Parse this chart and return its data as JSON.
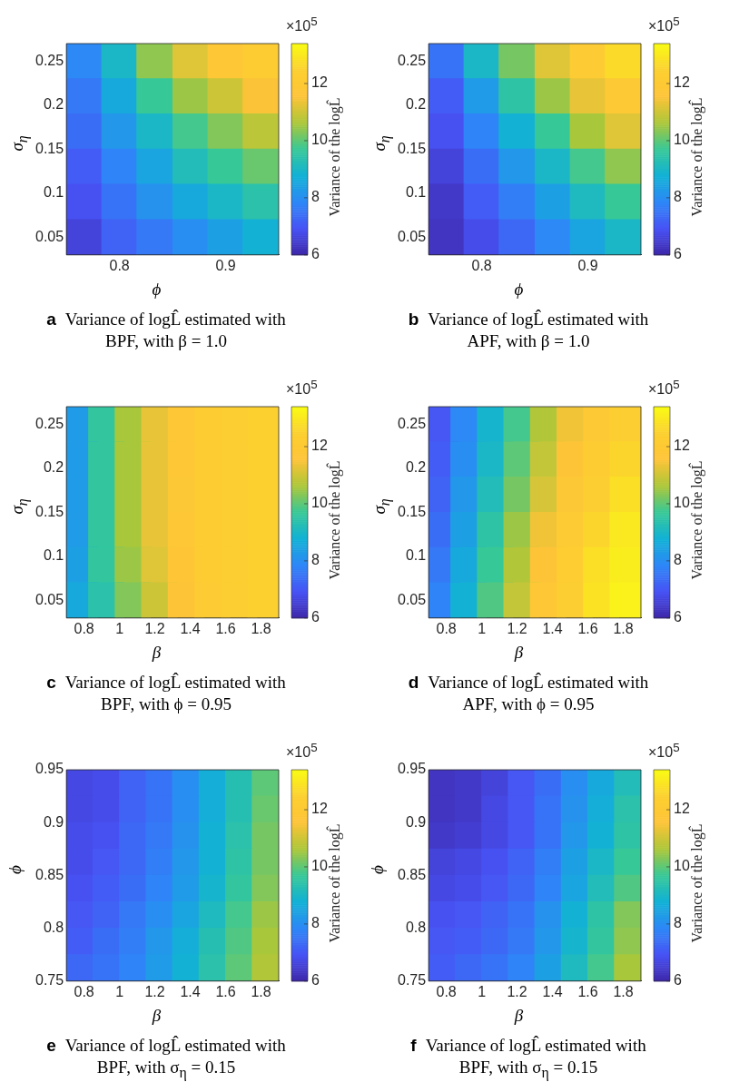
{
  "chart_data": [
    {
      "type": "scatter",
      "title": "Variance of logL̂ estimated with BPF, with β = 1.0",
      "subtitle": "a",
      "xlabel": "ϕ",
      "ylabel": "σ$_{η}$",
      "clabel": "Variance of the logL̂",
      "annotations": [
        "×10$^{5}$"
      ],
      "marker": "square",
      "xlim": [
        0.75,
        0.95
      ],
      "xticks": [
        0.8,
        0.9
      ],
      "ylim": [
        0.03,
        0.27
      ],
      "yticks": [
        0.05,
        0.1,
        0.15,
        0.2,
        0.25
      ],
      "clim": [
        6,
        13.4
      ],
      "cticks": [
        6,
        8,
        10,
        12
      ],
      "x": [
        0.767,
        0.8,
        0.833,
        0.867,
        0.9,
        0.933,
        0.767,
        0.8,
        0.833,
        0.867,
        0.9,
        0.933,
        0.767,
        0.8,
        0.833,
        0.867,
        0.9,
        0.933,
        0.767,
        0.8,
        0.833,
        0.867,
        0.9,
        0.933,
        0.767,
        0.8,
        0.833,
        0.867,
        0.9,
        0.933,
        0.767,
        0.8,
        0.833,
        0.867,
        0.9,
        0.933
      ],
      "values": [
        0.25,
        0.25,
        0.25,
        0.25,
        0.25,
        0.25,
        0.21,
        0.21,
        0.21,
        0.21,
        0.21,
        0.21,
        0.17,
        0.17,
        0.17,
        0.17,
        0.17,
        0.17,
        0.13,
        0.13,
        0.13,
        0.13,
        0.13,
        0.13,
        0.09,
        0.09,
        0.09,
        0.09,
        0.09,
        0.09,
        0.05,
        0.05,
        0.05,
        0.05,
        0.05,
        0.05
      ],
      "cvalues": [
        7.9,
        9.0,
        10.4,
        11.2,
        11.8,
        12.2,
        7.6,
        8.6,
        9.7,
        10.5,
        11.0,
        11.5,
        7.4,
        8.2,
        9.0,
        9.8,
        10.3,
        10.8,
        7.1,
        7.8,
        8.5,
        9.2,
        9.7,
        10.1,
        6.9,
        7.5,
        8.1,
        8.6,
        9.0,
        9.4,
        6.6,
        7.2,
        7.6,
        8.0,
        8.4,
        8.8
      ]
    },
    {
      "type": "scatter",
      "title": "Variance of logL̂ estimated with APF, with β = 1.0",
      "subtitle": "b",
      "xlabel": "ϕ",
      "ylabel": "σ$_{η}$",
      "clabel": "Variance of the logL̂",
      "annotations": [
        "×10$^{5}$"
      ],
      "marker": "square",
      "xlim": [
        0.75,
        0.95
      ],
      "xticks": [
        0.8,
        0.9
      ],
      "ylim": [
        0.03,
        0.27
      ],
      "yticks": [
        0.05,
        0.1,
        0.15,
        0.2,
        0.25
      ],
      "clim": [
        6,
        13.4
      ],
      "cticks": [
        6,
        8,
        10,
        12
      ],
      "x": [
        0.767,
        0.8,
        0.833,
        0.867,
        0.9,
        0.933,
        0.767,
        0.8,
        0.833,
        0.867,
        0.9,
        0.933,
        0.767,
        0.8,
        0.833,
        0.867,
        0.9,
        0.933,
        0.767,
        0.8,
        0.833,
        0.867,
        0.9,
        0.933,
        0.767,
        0.8,
        0.833,
        0.867,
        0.9,
        0.933,
        0.767,
        0.8,
        0.833,
        0.867,
        0.9,
        0.933
      ],
      "values": [
        0.25,
        0.25,
        0.25,
        0.25,
        0.25,
        0.25,
        0.21,
        0.21,
        0.21,
        0.21,
        0.21,
        0.21,
        0.17,
        0.17,
        0.17,
        0.17,
        0.17,
        0.17,
        0.13,
        0.13,
        0.13,
        0.13,
        0.13,
        0.13,
        0.09,
        0.09,
        0.09,
        0.09,
        0.09,
        0.09,
        0.05,
        0.05,
        0.05,
        0.05,
        0.05,
        0.05
      ],
      "cvalues": [
        7.5,
        9.0,
        10.2,
        11.2,
        12.1,
        12.7,
        7.1,
        8.3,
        9.5,
        10.5,
        11.3,
        12.0,
        6.9,
        7.8,
        8.8,
        9.7,
        10.6,
        11.2,
        6.6,
        7.4,
        8.2,
        9.0,
        9.8,
        10.4,
        6.4,
        7.1,
        7.7,
        8.4,
        9.1,
        9.7,
        6.3,
        6.8,
        7.3,
        7.9,
        8.5,
        9.0
      ]
    },
    {
      "type": "scatter",
      "title": "Variance of logL̂ estimated with BPF, with ϕ = 0.95",
      "subtitle": "c",
      "xlabel": "β",
      "ylabel": "σ$_{η}$",
      "clabel": "Variance of the logL̂",
      "annotations": [
        "×10$^{5}$"
      ],
      "marker": "square",
      "xlim": [
        0.7,
        1.9
      ],
      "xticks": [
        0.8,
        1,
        1.2,
        1.4,
        1.6,
        1.8
      ],
      "ylim": [
        0.03,
        0.27
      ],
      "yticks": [
        0.05,
        0.1,
        0.15,
        0.2,
        0.25
      ],
      "clim": [
        6,
        13.4
      ],
      "cticks": [
        6,
        8,
        10,
        12
      ],
      "x": [
        0.775,
        0.925,
        1.075,
        1.225,
        1.375,
        1.525,
        1.675,
        1.825,
        0.775,
        0.925,
        1.075,
        1.225,
        1.375,
        1.525,
        1.675,
        1.825,
        0.775,
        0.925,
        1.075,
        1.225,
        1.375,
        1.525,
        1.675,
        1.825,
        0.775,
        0.925,
        1.075,
        1.225,
        1.375,
        1.525,
        1.675,
        1.825,
        0.775,
        0.925,
        1.075,
        1.225,
        1.375,
        1.525,
        1.675,
        1.825,
        0.775,
        0.925,
        1.075,
        1.225,
        1.375,
        1.525,
        1.675,
        1.825
      ],
      "values": [
        0.25,
        0.25,
        0.25,
        0.25,
        0.25,
        0.25,
        0.25,
        0.25,
        0.21,
        0.21,
        0.21,
        0.21,
        0.21,
        0.21,
        0.21,
        0.21,
        0.17,
        0.17,
        0.17,
        0.17,
        0.17,
        0.17,
        0.17,
        0.17,
        0.13,
        0.13,
        0.13,
        0.13,
        0.13,
        0.13,
        0.13,
        0.13,
        0.09,
        0.09,
        0.09,
        0.09,
        0.09,
        0.09,
        0.09,
        0.09,
        0.05,
        0.05,
        0.05,
        0.05,
        0.05,
        0.05,
        0.05,
        0.05
      ],
      "cvalues": [
        8.3,
        9.6,
        10.6,
        11.3,
        11.8,
        12.2,
        12.4,
        12.5,
        8.3,
        9.6,
        10.6,
        11.3,
        11.8,
        12.2,
        12.4,
        12.5,
        8.3,
        9.6,
        10.6,
        11.3,
        11.9,
        12.2,
        12.4,
        12.5,
        8.3,
        9.6,
        10.6,
        11.3,
        11.8,
        12.2,
        12.4,
        12.5,
        8.4,
        9.6,
        10.5,
        11.2,
        11.7,
        12.2,
        12.4,
        12.5,
        8.6,
        9.4,
        10.3,
        11.0,
        11.6,
        12.1,
        12.4,
        12.5
      ]
    },
    {
      "type": "scatter",
      "title": "Variance of logL̂ estimated with APF, with ϕ = 0.95",
      "subtitle": "d",
      "xlabel": "β",
      "ylabel": "σ$_{η}$",
      "clabel": "Variance of the logL̂",
      "annotations": [
        "×10$^{5}$"
      ],
      "marker": "square",
      "xlim": [
        0.7,
        1.9
      ],
      "xticks": [
        0.8,
        1,
        1.2,
        1.4,
        1.6,
        1.8
      ],
      "ylim": [
        0.03,
        0.27
      ],
      "yticks": [
        0.05,
        0.1,
        0.15,
        0.2,
        0.25
      ],
      "clim": [
        6,
        13.4
      ],
      "cticks": [
        6,
        8,
        10,
        12
      ],
      "x": [
        0.775,
        0.925,
        1.075,
        1.225,
        1.375,
        1.525,
        1.675,
        1.825,
        0.775,
        0.925,
        1.075,
        1.225,
        1.375,
        1.525,
        1.675,
        1.825,
        0.775,
        0.925,
        1.075,
        1.225,
        1.375,
        1.525,
        1.675,
        1.825,
        0.775,
        0.925,
        1.075,
        1.225,
        1.375,
        1.525,
        1.675,
        1.825,
        0.775,
        0.925,
        1.075,
        1.225,
        1.375,
        1.525,
        1.675,
        1.825,
        0.775,
        0.925,
        1.075,
        1.225,
        1.375,
        1.525,
        1.675,
        1.825
      ],
      "values": [
        0.25,
        0.25,
        0.25,
        0.25,
        0.25,
        0.25,
        0.25,
        0.25,
        0.21,
        0.21,
        0.21,
        0.21,
        0.21,
        0.21,
        0.21,
        0.21,
        0.17,
        0.17,
        0.17,
        0.17,
        0.17,
        0.17,
        0.17,
        0.17,
        0.13,
        0.13,
        0.13,
        0.13,
        0.13,
        0.13,
        0.13,
        0.13,
        0.09,
        0.09,
        0.09,
        0.09,
        0.09,
        0.09,
        0.09,
        0.09,
        0.05,
        0.05,
        0.05,
        0.05,
        0.05,
        0.05,
        0.05,
        0.05
      ],
      "cvalues": [
        7.0,
        7.9,
        8.9,
        9.8,
        10.7,
        11.4,
        12.0,
        12.4,
        7.1,
        8.0,
        9.0,
        10.0,
        10.9,
        11.6,
        12.2,
        12.6,
        7.2,
        8.2,
        9.2,
        10.2,
        11.1,
        11.9,
        12.4,
        12.8,
        7.4,
        8.4,
        9.5,
        10.5,
        11.4,
        12.1,
        12.6,
        13.0,
        7.6,
        8.6,
        9.7,
        10.7,
        11.6,
        12.3,
        12.8,
        13.1,
        7.8,
        8.8,
        9.9,
        10.9,
        11.8,
        12.4,
        12.9,
        13.2
      ]
    },
    {
      "type": "scatter",
      "title": "Variance of logL̂ estimated with BPF, with σ$_{η}$ = 0.15",
      "subtitle": "e",
      "xlabel": "β",
      "ylabel": "ϕ",
      "clabel": "Variance of the logL̂",
      "annotations": [
        "×10$^{5}$"
      ],
      "marker": "square",
      "xlim": [
        0.7,
        1.9
      ],
      "xticks": [
        0.8,
        1,
        1.2,
        1.4,
        1.6,
        1.8
      ],
      "ylim": [
        0.75,
        0.95
      ],
      "yticks": [
        0.75,
        0.8,
        0.85,
        0.9,
        0.95
      ],
      "clim": [
        6,
        13.4
      ],
      "cticks": [
        6,
        8,
        10,
        12
      ],
      "x": [
        0.775,
        0.925,
        1.075,
        1.225,
        1.375,
        1.525,
        1.675,
        1.825,
        0.775,
        0.925,
        1.075,
        1.225,
        1.375,
        1.525,
        1.675,
        1.825,
        0.775,
        0.925,
        1.075,
        1.225,
        1.375,
        1.525,
        1.675,
        1.825,
        0.775,
        0.925,
        1.075,
        1.225,
        1.375,
        1.525,
        1.675,
        1.825,
        0.775,
        0.925,
        1.075,
        1.225,
        1.375,
        1.525,
        1.675,
        1.825,
        0.775,
        0.925,
        1.075,
        1.225,
        1.375,
        1.525,
        1.675,
        1.825,
        0.775,
        0.925,
        1.075,
        1.225,
        1.375,
        1.525,
        1.675,
        1.825,
        0.775,
        0.925,
        1.075,
        1.225,
        1.375,
        1.525,
        1.675,
        1.825
      ],
      "values": [
        0.9375,
        0.9375,
        0.9375,
        0.9375,
        0.9375,
        0.9375,
        0.9375,
        0.9375,
        0.9125,
        0.9125,
        0.9125,
        0.9125,
        0.9125,
        0.9125,
        0.9125,
        0.9125,
        0.8875,
        0.8875,
        0.8875,
        0.8875,
        0.8875,
        0.8875,
        0.8875,
        0.8875,
        0.8625,
        0.8625,
        0.8625,
        0.8625,
        0.8625,
        0.8625,
        0.8625,
        0.8625,
        0.8375,
        0.8375,
        0.8375,
        0.8375,
        0.8375,
        0.8375,
        0.8375,
        0.8375,
        0.8125,
        0.8125,
        0.8125,
        0.8125,
        0.8125,
        0.8125,
        0.8125,
        0.8125,
        0.7875,
        0.7875,
        0.7875,
        0.7875,
        0.7875,
        0.7875,
        0.7875,
        0.7875,
        0.7625,
        0.7625,
        0.7625,
        0.7625,
        0.7625,
        0.7625,
        0.7625,
        0.7625
      ],
      "cvalues": [
        6.7,
        6.8,
        7.2,
        7.5,
        8.0,
        8.7,
        9.3,
        10.0,
        6.7,
        6.8,
        7.2,
        7.5,
        8.0,
        8.7,
        9.3,
        10.1,
        6.8,
        6.9,
        7.3,
        7.6,
        8.1,
        8.8,
        9.4,
        10.2,
        6.8,
        7.0,
        7.3,
        7.7,
        8.2,
        8.8,
        9.5,
        10.2,
        6.9,
        7.1,
        7.4,
        7.8,
        8.3,
        8.9,
        9.6,
        10.3,
        7.0,
        7.2,
        7.6,
        8.0,
        8.5,
        9.1,
        9.8,
        10.5,
        7.1,
        7.4,
        7.7,
        8.2,
        8.7,
        9.3,
        9.9,
        10.6,
        7.3,
        7.5,
        7.8,
        8.3,
        8.8,
        9.4,
        10.0,
        10.7
      ]
    },
    {
      "type": "scatter",
      "title": "Variance of logL̂ estimated with BPF, with σ$_{η}$ = 0.15",
      "subtitle": "f",
      "xlabel": "β",
      "ylabel": "ϕ",
      "clabel": "Variance of the logL̂",
      "annotations": [
        "×10$^{5}$"
      ],
      "marker": "square",
      "xlim": [
        0.7,
        1.9
      ],
      "xticks": [
        0.8,
        1,
        1.2,
        1.4,
        1.6,
        1.8
      ],
      "ylim": [
        0.75,
        0.95
      ],
      "yticks": [
        0.75,
        0.8,
        0.85,
        0.9,
        0.95
      ],
      "clim": [
        6,
        13.4
      ],
      "cticks": [
        6,
        8,
        10,
        12
      ],
      "x": [
        0.775,
        0.925,
        1.075,
        1.225,
        1.375,
        1.525,
        1.675,
        1.825,
        0.775,
        0.925,
        1.075,
        1.225,
        1.375,
        1.525,
        1.675,
        1.825,
        0.775,
        0.925,
        1.075,
        1.225,
        1.375,
        1.525,
        1.675,
        1.825,
        0.775,
        0.925,
        1.075,
        1.225,
        1.375,
        1.525,
        1.675,
        1.825,
        0.775,
        0.925,
        1.075,
        1.225,
        1.375,
        1.525,
        1.675,
        1.825,
        0.775,
        0.925,
        1.075,
        1.225,
        1.375,
        1.525,
        1.675,
        1.825,
        0.775,
        0.925,
        1.075,
        1.225,
        1.375,
        1.525,
        1.675,
        1.825,
        0.775,
        0.925,
        1.075,
        1.225,
        1.375,
        1.525,
        1.675,
        1.825
      ],
      "values": [
        0.9375,
        0.9375,
        0.9375,
        0.9375,
        0.9375,
        0.9375,
        0.9375,
        0.9375,
        0.9125,
        0.9125,
        0.9125,
        0.9125,
        0.9125,
        0.9125,
        0.9125,
        0.9125,
        0.8875,
        0.8875,
        0.8875,
        0.8875,
        0.8875,
        0.8875,
        0.8875,
        0.8875,
        0.8625,
        0.8625,
        0.8625,
        0.8625,
        0.8625,
        0.8625,
        0.8625,
        0.8625,
        0.8375,
        0.8375,
        0.8375,
        0.8375,
        0.8375,
        0.8375,
        0.8375,
        0.8375,
        0.8125,
        0.8125,
        0.8125,
        0.8125,
        0.8125,
        0.8125,
        0.8125,
        0.8125,
        0.7875,
        0.7875,
        0.7875,
        0.7875,
        0.7875,
        0.7875,
        0.7875,
        0.7875,
        0.7625,
        0.7625,
        0.7625,
        0.7625,
        0.7625,
        0.7625,
        0.7625,
        0.7625
      ],
      "cvalues": [
        6.3,
        6.4,
        6.6,
        7.0,
        7.4,
        8.0,
        8.6,
        9.2,
        6.3,
        6.4,
        6.7,
        7.0,
        7.5,
        8.1,
        8.7,
        9.4,
        6.4,
        6.5,
        6.7,
        7.0,
        7.5,
        8.2,
        8.8,
        9.5,
        6.6,
        6.7,
        6.9,
        7.2,
        7.7,
        8.4,
        9.0,
        9.7,
        6.7,
        6.8,
        7.0,
        7.3,
        7.8,
        8.5,
        9.2,
        9.9,
        6.9,
        7.0,
        7.2,
        7.5,
        8.1,
        8.8,
        9.5,
        10.3,
        7.0,
        7.1,
        7.3,
        7.6,
        8.2,
        8.9,
        9.6,
        10.4,
        7.1,
        7.3,
        7.5,
        7.8,
        8.4,
        9.1,
        9.8,
        10.6
      ]
    }
  ]
}
